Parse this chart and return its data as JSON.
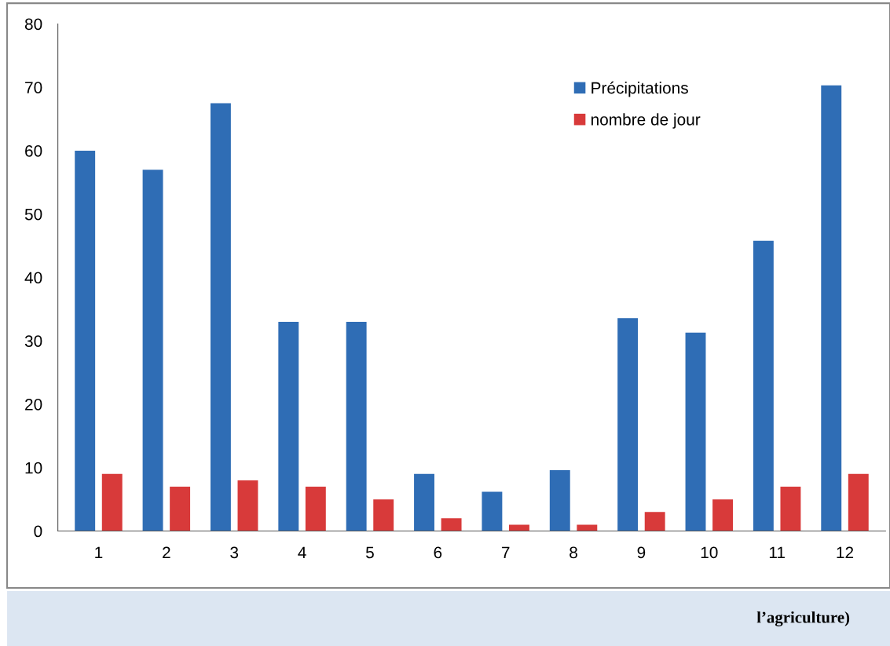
{
  "chart_data": {
    "type": "bar",
    "categories": [
      "1",
      "2",
      "3",
      "4",
      "5",
      "6",
      "7",
      "8",
      "9",
      "10",
      "11",
      "12"
    ],
    "series": [
      {
        "name": "Précipitations",
        "color": "#2f6db5",
        "values": [
          60,
          57,
          67.5,
          33,
          33,
          9,
          6.2,
          9.6,
          33.6,
          31.3,
          45.8,
          70.3
        ]
      },
      {
        "name": "nombre de jour",
        "color": "#d83a3a",
        "values": [
          9,
          7,
          8,
          7,
          5,
          2,
          1,
          1,
          3,
          5,
          7,
          9
        ]
      }
    ],
    "ylim": [
      0,
      80
    ],
    "yticks": [
      0,
      10,
      20,
      30,
      40,
      50,
      60,
      70,
      80
    ],
    "grid": false,
    "legend": "top right",
    "annotations": [
      "l’agriculture)"
    ]
  }
}
